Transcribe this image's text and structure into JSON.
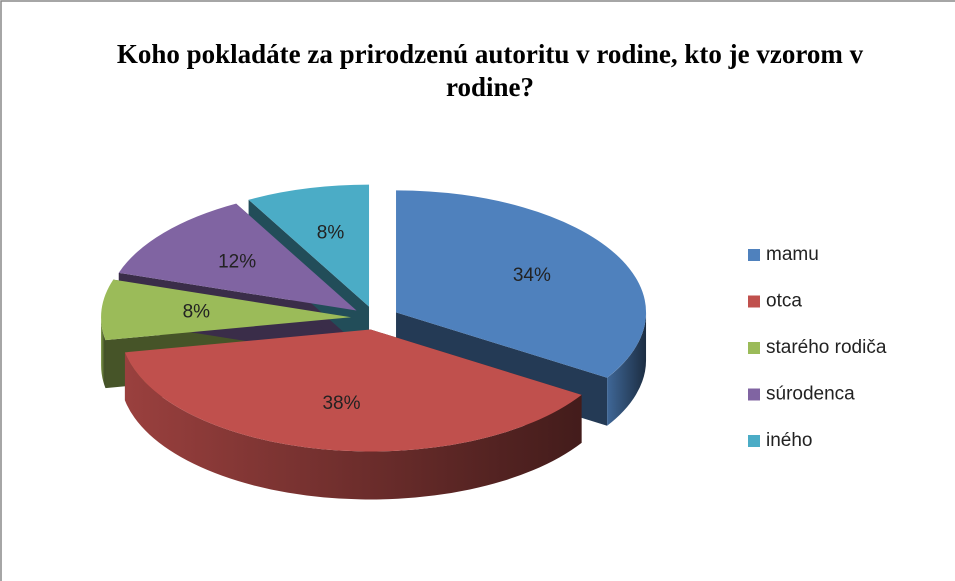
{
  "chart_data": {
    "type": "pie3d",
    "title": "Koho pokladáte za prirodzenú autoritu v rodine, kto je vzorom v rodine?",
    "categories": [
      "mamu",
      "otca",
      "starého rodiča",
      "súrodenca",
      "iného"
    ],
    "values": [
      34,
      38,
      8,
      12,
      8
    ],
    "value_labels": [
      "34%",
      "38%",
      "8%",
      "12%",
      "8%"
    ],
    "colors": [
      "#4f81bd",
      "#c0504d",
      "#9bbb59",
      "#8064a2",
      "#4bacc6"
    ],
    "legend": "right"
  }
}
